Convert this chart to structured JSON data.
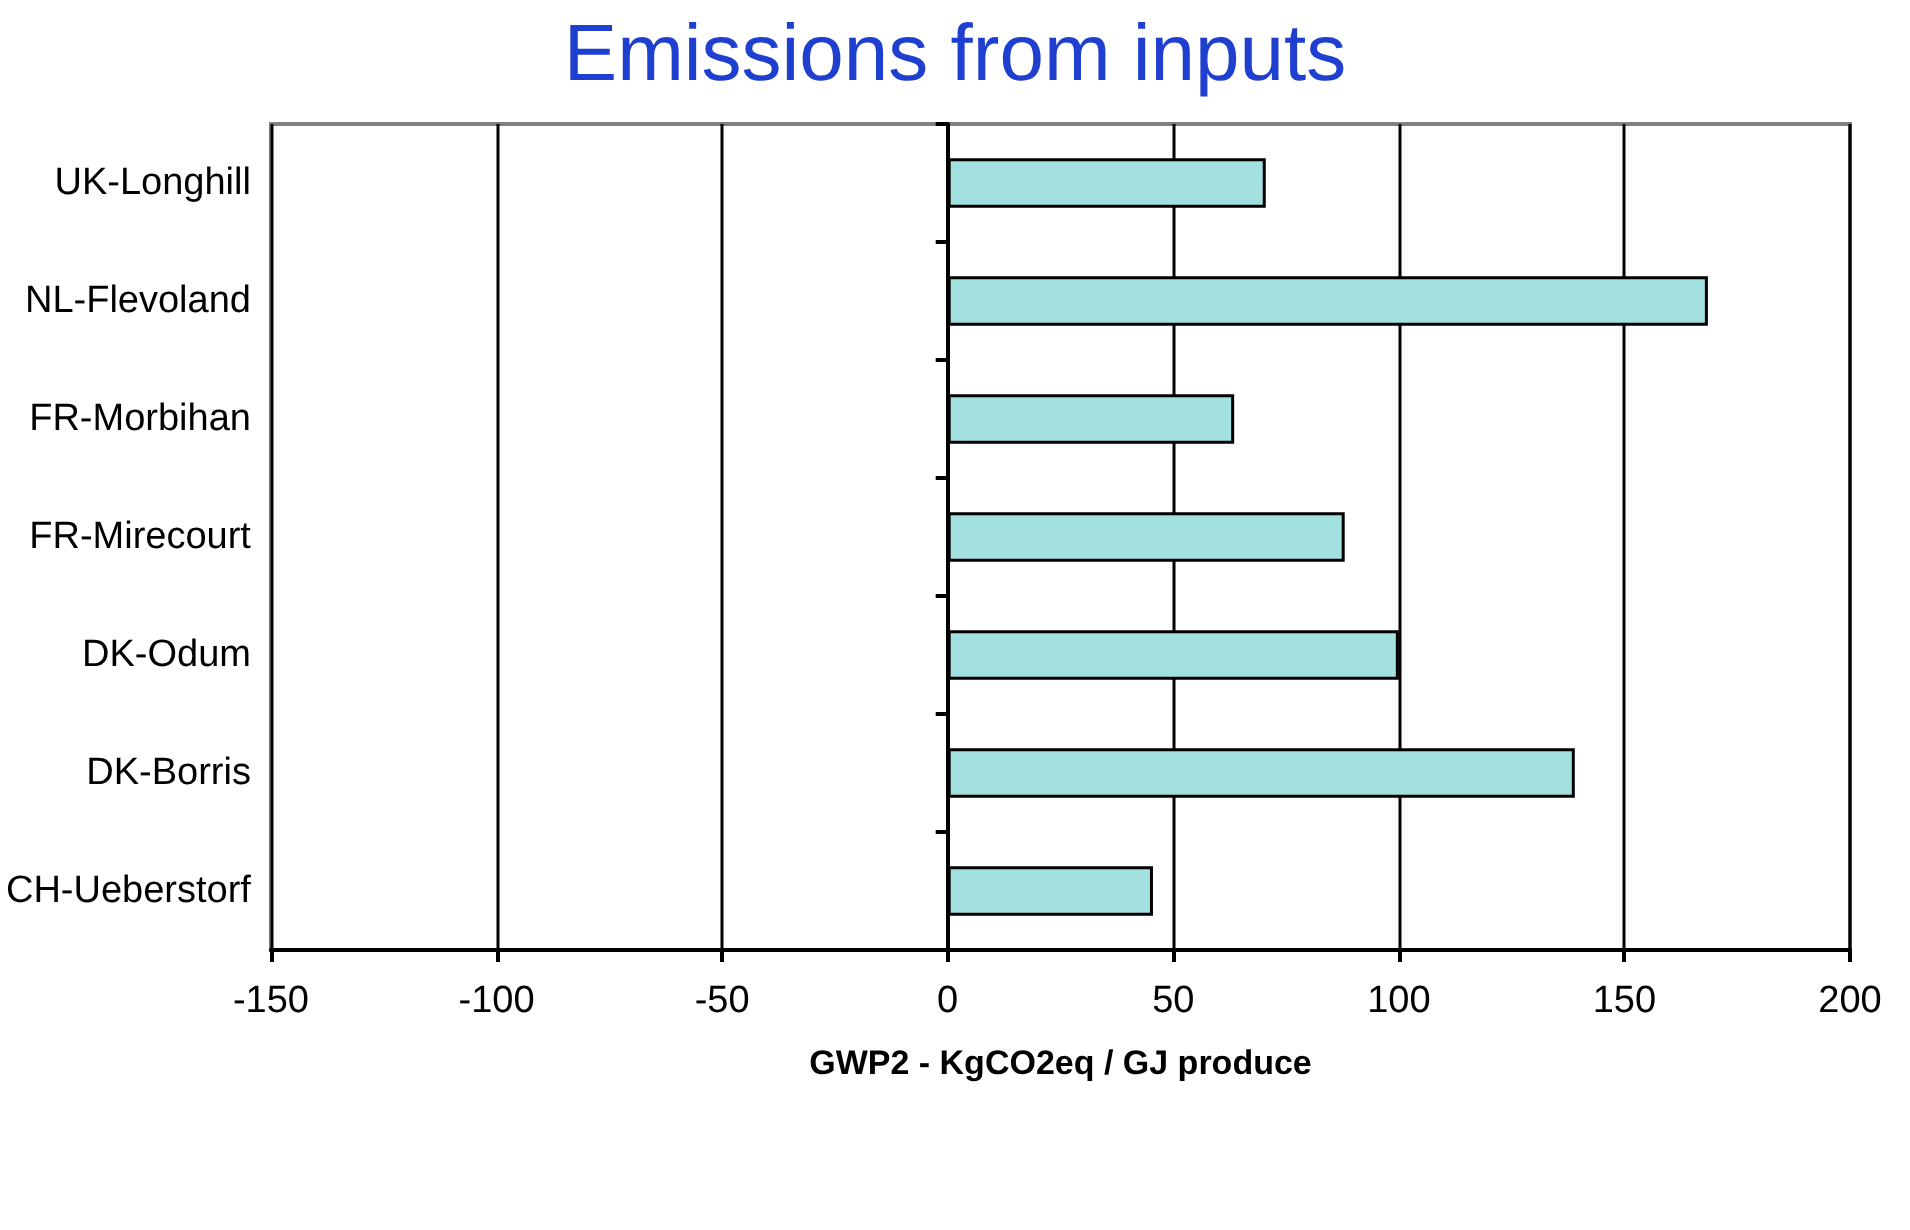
{
  "chart_data": {
    "type": "bar",
    "orientation": "horizontal",
    "title": "Emissions from inputs",
    "xlabel": "GWP2 - KgCO2eq / GJ produce",
    "categories": [
      "UK-Longhill",
      "NL-Flevoland",
      "FR-Morbihan",
      "FR-Mirecourt",
      "DK-Odum",
      "DK-Borris",
      "CH-Ueberstorf"
    ],
    "values": [
      70.5,
      168.5,
      63.5,
      88,
      100,
      139,
      45.5
    ],
    "color": "#a3e0e0",
    "xlim": [
      -150,
      200
    ],
    "xticks": [
      -150,
      -100,
      -50,
      0,
      50,
      100,
      150,
      200
    ],
    "grid": "x"
  }
}
